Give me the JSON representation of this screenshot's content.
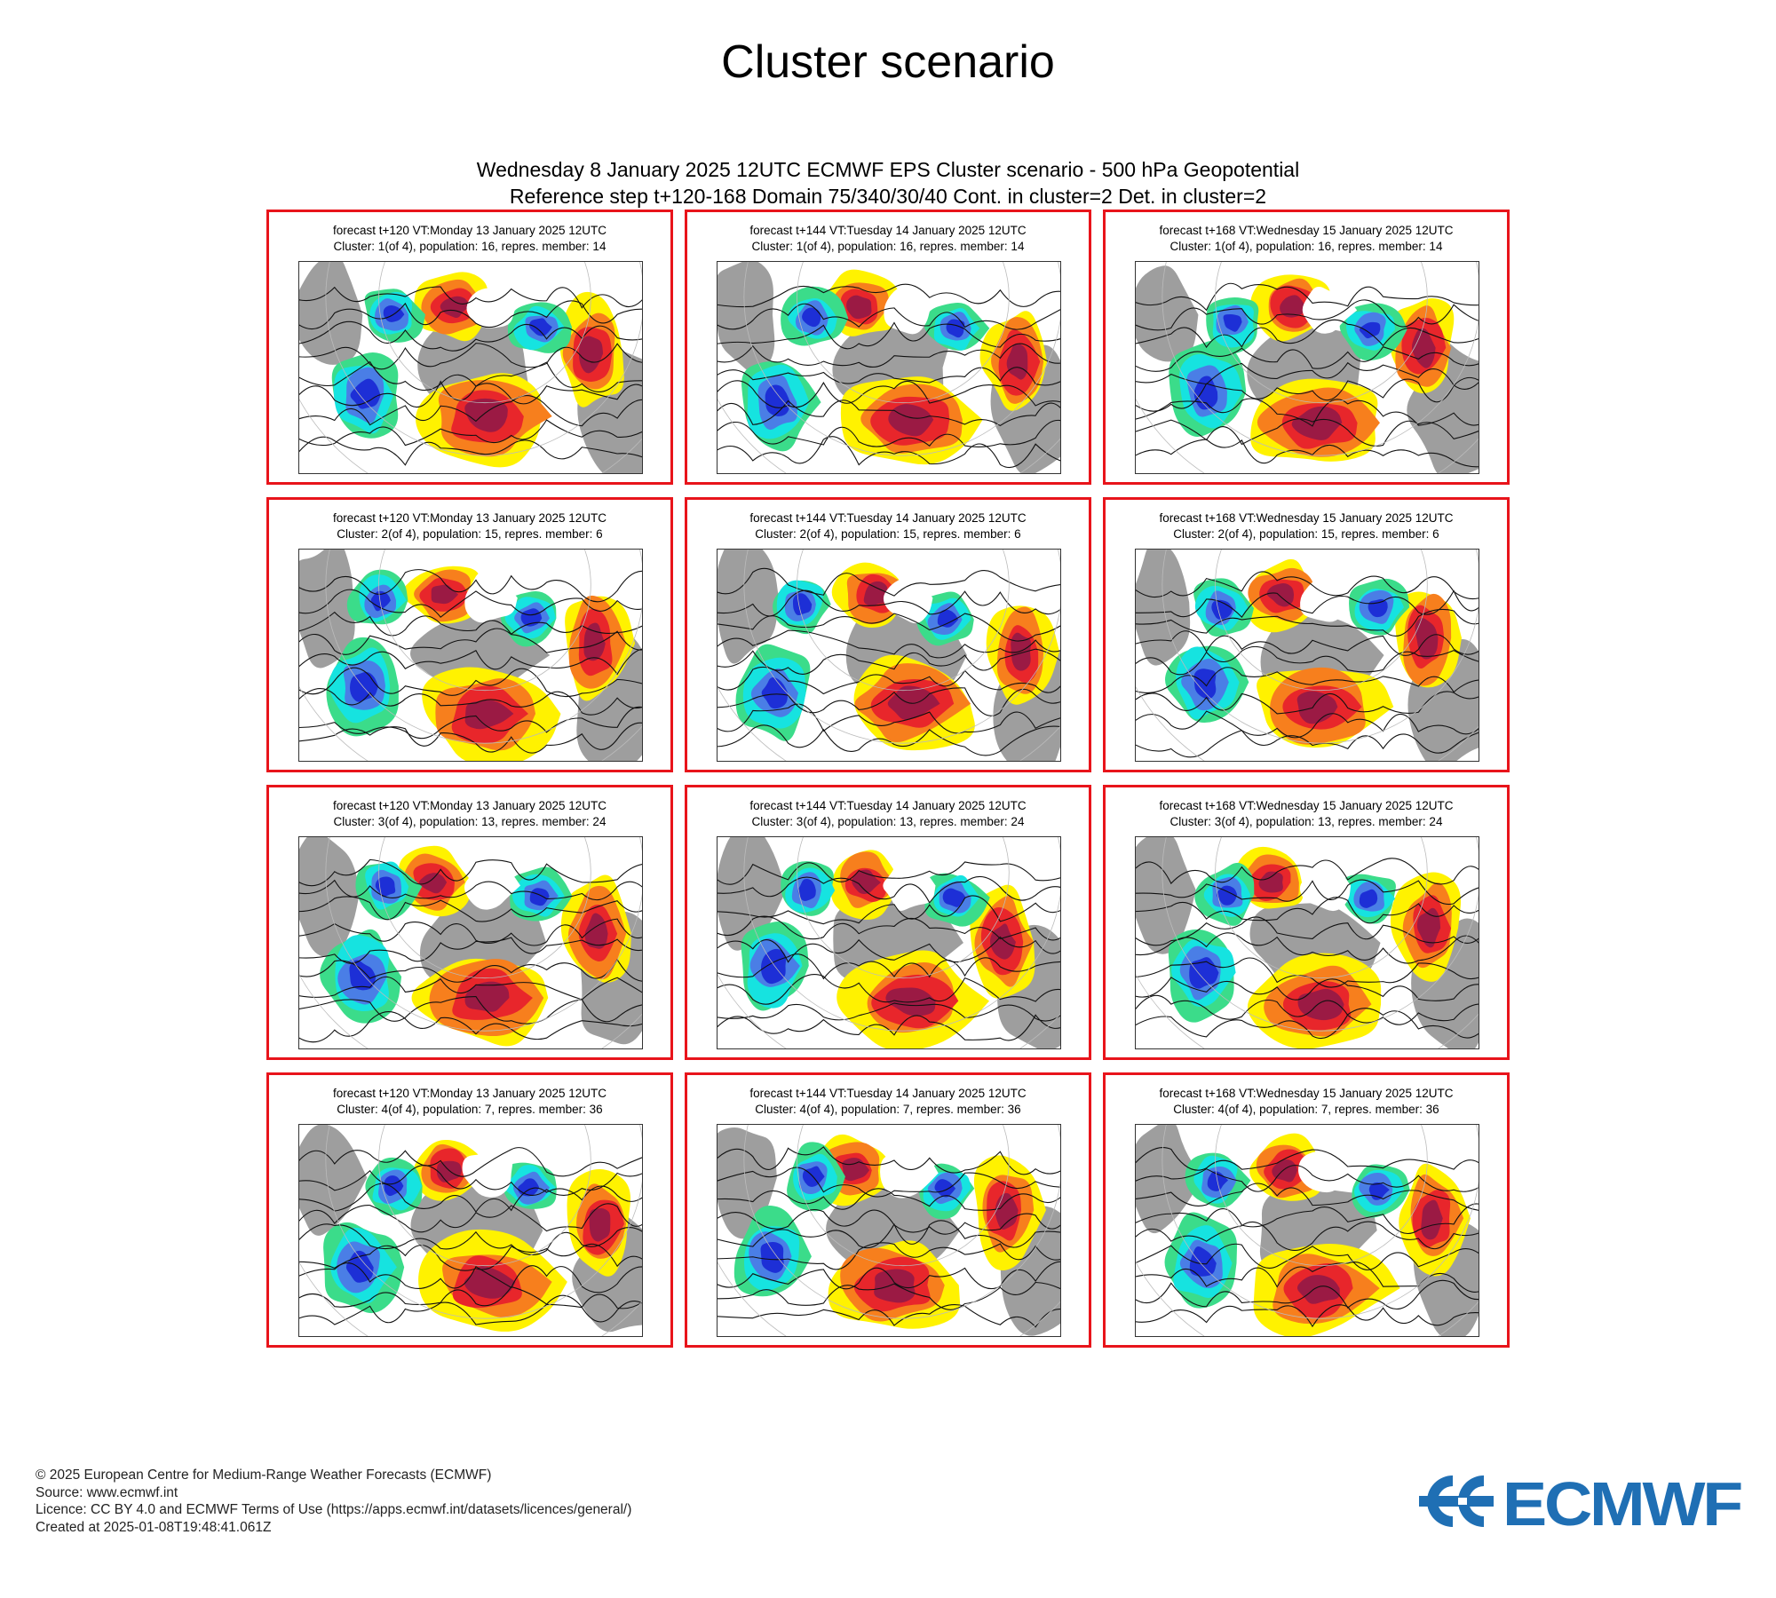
{
  "page": {
    "title": "Cluster scenario"
  },
  "chart": {
    "header_line1": "Wednesday 8 January 2025 12UTC ECMWF EPS Cluster scenario - 500 hPa Geopotential",
    "header_line2": "Reference step t+120-168 Domain 75/340/30/40 Cont. in cluster=2 Det. in cluster=2"
  },
  "colors": {
    "panel_border": "#e8141b",
    "deep_red": "#9b1a44",
    "red": "#e8262b",
    "orange": "#f77f1d",
    "yellow": "#fff200",
    "grey": "#9e9e9e",
    "green": "#3bdc8a",
    "cyan": "#16e3e0",
    "blue": "#4a7ee6",
    "deep_blue": "#1d2fd6"
  },
  "panels": [
    {
      "line1": "forecast t+120 VT:Monday 13 January 2025 12UTC",
      "line2": "Cluster: 1(of 4), population: 16, repres. member: 14"
    },
    {
      "line1": "forecast t+144 VT:Tuesday 14 January 2025 12UTC",
      "line2": "Cluster: 1(of 4), population: 16, repres. member: 14"
    },
    {
      "line1": "forecast t+168 VT:Wednesday 15 January 2025 12UTC",
      "line2": "Cluster: 1(of 4), population: 16, repres. member: 14"
    },
    {
      "line1": "forecast t+120 VT:Monday 13 January 2025 12UTC",
      "line2": "Cluster: 2(of 4), population: 15, repres. member: 6"
    },
    {
      "line1": "forecast t+144 VT:Tuesday 14 January 2025 12UTC",
      "line2": "Cluster: 2(of 4), population: 15, repres. member: 6"
    },
    {
      "line1": "forecast t+168 VT:Wednesday 15 January 2025 12UTC",
      "line2": "Cluster: 2(of 4), population: 15, repres. member: 6"
    },
    {
      "line1": "forecast t+120 VT:Monday 13 January 2025 12UTC",
      "line2": "Cluster: 3(of 4), population: 13, repres. member: 24"
    },
    {
      "line1": "forecast t+144 VT:Tuesday 14 January 2025 12UTC",
      "line2": "Cluster: 3(of 4), population: 13, repres. member: 24"
    },
    {
      "line1": "forecast t+168 VT:Wednesday 15 January 2025 12UTC",
      "line2": "Cluster: 3(of 4), population: 13, repres. member: 24"
    },
    {
      "line1": "forecast t+120 VT:Monday 13 January 2025 12UTC",
      "line2": "Cluster: 4(of 4), population: 7, repres. member: 36"
    },
    {
      "line1": "forecast t+144 VT:Tuesday 14 January 2025 12UTC",
      "line2": "Cluster: 4(of 4), population: 7, repres. member: 36"
    },
    {
      "line1": "forecast t+168 VT:Wednesday 15 January 2025 12UTC",
      "line2": "Cluster: 4(of 4), population: 7, repres. member: 36"
    }
  ],
  "footer": {
    "copyright": "© 2025 European Centre for Medium-Range Weather Forecasts (ECMWF)",
    "source": "Source: www.ecmwf.int",
    "licence": "Licence: CC BY 4.0 and ECMWF Terms of Use (https://apps.ecmwf.int/datasets/licences/general/)",
    "created": "Created at 2025-01-08T19:48:41.061Z"
  },
  "logo": {
    "text": "ECMWF",
    "color": "#1f6fb4",
    "icon": "ecmwf-logo-icon"
  }
}
